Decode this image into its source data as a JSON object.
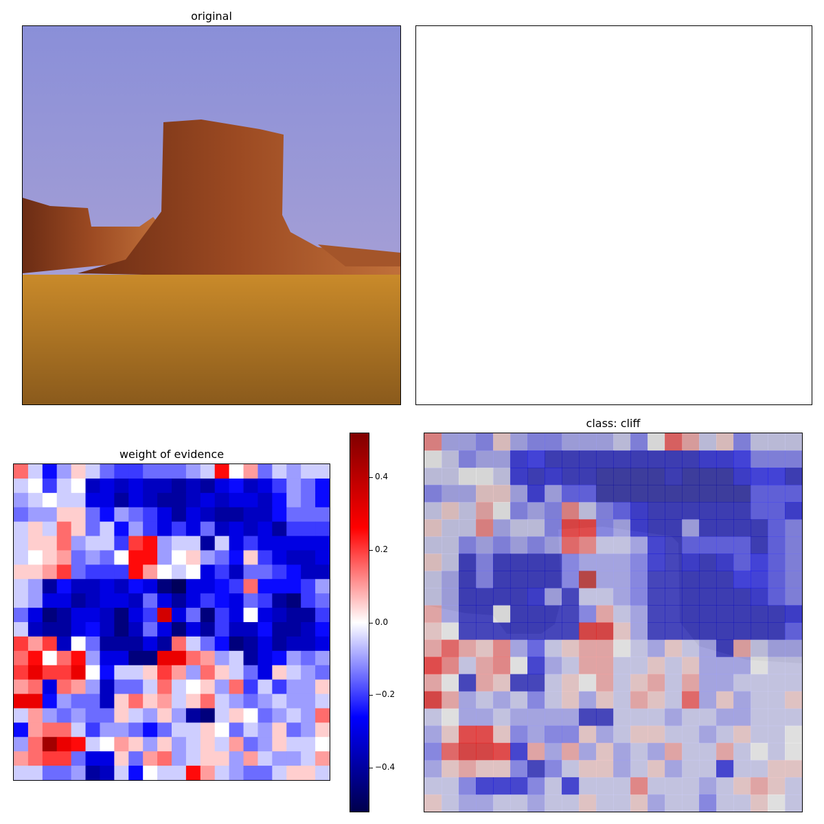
{
  "panels": {
    "original": {
      "title": "original"
    },
    "blank": {
      "title": ""
    },
    "weight": {
      "title": "weight of evidence"
    },
    "overlay": {
      "title": "class: cliff"
    }
  },
  "colors": {
    "sky_top": "#8a8fd8",
    "sky_bottom": "#b3a7d4",
    "rock_dark": "#6b2c14",
    "rock_mid": "#9c4a22",
    "rock_light": "#c0703a",
    "grass": "#c98a2a",
    "grass_dark": "#8a5a1c",
    "overlay_gray": "#9a9a9a",
    "cmap": [
      "#00004c",
      "#0000ff",
      "#ffffff",
      "#ff0000",
      "#800000"
    ]
  },
  "chart_data": [
    {
      "type": "heatmap",
      "title": "weight of evidence",
      "xlabel": "",
      "ylabel": "",
      "rows": 22,
      "cols": 22,
      "colormap": "seismic",
      "vmin": -0.52,
      "vmax": 0.52,
      "colorbar_ticks": [
        0.4,
        0.2,
        0.0,
        -0.2,
        -0.4
      ],
      "colorbar_tick_labels": [
        "0.4",
        "0.2",
        "0.0",
        "−0.2",
        "−0.4"
      ],
      "values": [
        [
          0.15,
          -0.05,
          -0.25,
          -0.1,
          0.05,
          -0.05,
          -0.15,
          -0.2,
          -0.2,
          -0.15,
          -0.15,
          -0.15,
          -0.1,
          -0.05,
          0.25,
          0.0,
          0.1,
          -0.15,
          -0.05,
          -0.1,
          -0.05,
          -0.05
        ],
        [
          -0.05,
          0.0,
          -0.2,
          -0.05,
          0.0,
          -0.35,
          -0.3,
          -0.35,
          -0.3,
          -0.35,
          -0.35,
          -0.4,
          -0.35,
          -0.4,
          -0.3,
          -0.25,
          -0.35,
          -0.3,
          -0.2,
          -0.1,
          -0.15,
          -0.25
        ],
        [
          -0.1,
          -0.05,
          0.0,
          -0.05,
          -0.05,
          -0.3,
          -0.3,
          -0.4,
          -0.3,
          -0.35,
          -0.4,
          -0.4,
          -0.35,
          -0.3,
          -0.35,
          -0.3,
          -0.3,
          -0.35,
          -0.25,
          -0.1,
          -0.15,
          -0.25
        ],
        [
          -0.15,
          -0.1,
          -0.1,
          0.05,
          0.05,
          -0.15,
          -0.25,
          -0.1,
          -0.15,
          -0.2,
          -0.3,
          -0.4,
          -0.3,
          -0.35,
          -0.4,
          -0.4,
          -0.35,
          -0.35,
          -0.25,
          -0.15,
          -0.15,
          -0.15
        ],
        [
          -0.05,
          0.05,
          -0.05,
          0.15,
          0.05,
          -0.15,
          -0.05,
          -0.25,
          -0.1,
          -0.2,
          -0.3,
          -0.2,
          -0.3,
          -0.15,
          -0.35,
          -0.3,
          -0.35,
          -0.3,
          -0.4,
          -0.2,
          -0.2,
          -0.2
        ],
        [
          -0.05,
          0.05,
          0.05,
          0.15,
          -0.1,
          -0.05,
          -0.05,
          -0.2,
          0.2,
          0.25,
          -0.1,
          -0.05,
          -0.05,
          -0.4,
          -0.05,
          -0.3,
          -0.2,
          -0.3,
          -0.3,
          -0.3,
          -0.3,
          -0.3
        ],
        [
          -0.05,
          0.0,
          0.05,
          0.1,
          -0.15,
          -0.1,
          -0.15,
          0.0,
          0.25,
          0.25,
          -0.1,
          0.0,
          0.05,
          -0.1,
          -0.15,
          -0.25,
          0.05,
          -0.2,
          -0.3,
          -0.35,
          -0.35,
          -0.3
        ],
        [
          0.05,
          0.05,
          0.1,
          0.2,
          -0.15,
          -0.2,
          -0.2,
          -0.2,
          0.25,
          0.1,
          0.0,
          -0.05,
          0.0,
          -0.3,
          -0.2,
          -0.35,
          -0.15,
          -0.15,
          -0.2,
          -0.25,
          -0.35,
          -0.35
        ],
        [
          -0.05,
          -0.1,
          -0.4,
          -0.25,
          -0.35,
          -0.35,
          -0.3,
          -0.35,
          -0.25,
          -0.3,
          -0.45,
          -0.5,
          -0.3,
          -0.3,
          -0.25,
          -0.2,
          0.15,
          -0.25,
          -0.25,
          -0.25,
          -0.2,
          -0.1
        ],
        [
          -0.05,
          -0.1,
          -0.3,
          -0.3,
          -0.4,
          -0.35,
          -0.3,
          -0.3,
          -0.35,
          -0.15,
          -0.3,
          -0.4,
          -0.3,
          -0.2,
          -0.25,
          -0.3,
          -0.15,
          -0.2,
          -0.4,
          -0.45,
          -0.2,
          -0.15
        ],
        [
          -0.15,
          -0.3,
          -0.45,
          -0.4,
          -0.3,
          -0.3,
          -0.35,
          -0.45,
          -0.3,
          -0.2,
          0.35,
          -0.3,
          -0.15,
          -0.45,
          -0.2,
          -0.3,
          0.0,
          -0.3,
          -0.35,
          -0.4,
          -0.4,
          -0.2
        ],
        [
          -0.05,
          -0.35,
          -0.4,
          -0.4,
          -0.3,
          -0.25,
          -0.35,
          -0.45,
          -0.35,
          -0.15,
          -0.3,
          -0.45,
          -0.3,
          -0.4,
          -0.2,
          -0.35,
          -0.35,
          -0.25,
          -0.4,
          -0.4,
          -0.35,
          -0.25
        ],
        [
          0.2,
          0.1,
          0.2,
          -0.35,
          0.0,
          -0.15,
          -0.4,
          -0.4,
          -0.4,
          -0.3,
          -0.4,
          0.15,
          -0.05,
          -0.15,
          -0.25,
          -0.45,
          -0.4,
          -0.3,
          -0.4,
          -0.35,
          -0.35,
          -0.3
        ],
        [
          0.15,
          0.25,
          0.0,
          0.15,
          0.25,
          -0.1,
          -0.3,
          -0.3,
          -0.45,
          -0.45,
          0.3,
          0.3,
          0.15,
          0.1,
          -0.1,
          -0.05,
          -0.4,
          -0.3,
          -0.25,
          -0.1,
          -0.15,
          -0.1
        ],
        [
          0.2,
          0.3,
          0.2,
          0.2,
          0.3,
          0.0,
          -0.25,
          -0.05,
          -0.05,
          0.05,
          0.2,
          0.1,
          -0.1,
          0.15,
          0.05,
          -0.05,
          -0.15,
          -0.3,
          0.05,
          -0.05,
          -0.1,
          -0.15
        ],
        [
          0.1,
          0.15,
          -0.3,
          0.15,
          0.1,
          -0.1,
          -0.35,
          -0.15,
          -0.15,
          -0.05,
          0.15,
          -0.05,
          0.0,
          0.05,
          -0.1,
          0.15,
          -0.2,
          -0.05,
          -0.2,
          -0.1,
          -0.1,
          0.05
        ],
        [
          0.3,
          0.3,
          -0.25,
          -0.1,
          -0.15,
          -0.15,
          -0.35,
          0.05,
          0.15,
          0.05,
          0.1,
          -0.05,
          0.05,
          0.15,
          -0.05,
          -0.1,
          -0.15,
          -0.1,
          -0.05,
          -0.1,
          -0.1,
          -0.05
        ],
        [
          -0.05,
          0.1,
          -0.1,
          -0.15,
          -0.1,
          -0.15,
          -0.15,
          0.05,
          -0.05,
          -0.1,
          0.05,
          -0.1,
          -0.4,
          -0.45,
          -0.05,
          0.05,
          0.0,
          -0.15,
          -0.1,
          -0.05,
          -0.1,
          0.15
        ],
        [
          -0.25,
          0.1,
          0.15,
          0.15,
          -0.05,
          -0.2,
          -0.1,
          -0.1,
          -0.15,
          -0.25,
          -0.15,
          -0.05,
          -0.05,
          0.05,
          0.0,
          -0.15,
          -0.05,
          -0.1,
          0.05,
          -0.15,
          -0.1,
          0.05
        ],
        [
          -0.1,
          0.15,
          0.45,
          0.3,
          0.25,
          -0.05,
          0.0,
          0.1,
          0.05,
          -0.1,
          0.05,
          -0.1,
          -0.05,
          0.05,
          -0.05,
          0.1,
          -0.15,
          -0.1,
          0.05,
          -0.05,
          -0.05,
          0.0
        ],
        [
          0.1,
          0.15,
          0.2,
          0.2,
          -0.15,
          -0.3,
          -0.3,
          0.05,
          -0.15,
          0.1,
          0.15,
          -0.1,
          -0.05,
          0.05,
          0.05,
          -0.1,
          0.1,
          -0.05,
          -0.1,
          -0.1,
          -0.05,
          0.1
        ],
        [
          -0.05,
          -0.05,
          -0.15,
          -0.15,
          -0.1,
          -0.4,
          -0.35,
          -0.05,
          -0.25,
          0.0,
          -0.05,
          -0.05,
          0.25,
          0.1,
          -0.05,
          -0.1,
          -0.15,
          -0.15,
          -0.05,
          0.05,
          0.05,
          -0.05
        ]
      ]
    },
    {
      "type": "heatmap",
      "title": "class: cliff",
      "rows": 22,
      "cols": 22,
      "overlay_alpha": 0.6,
      "values": [
        [
          0.15,
          -0.1,
          -0.1,
          -0.15,
          0.05,
          -0.1,
          -0.15,
          -0.15,
          -0.1,
          -0.1,
          -0.1,
          -0.05,
          -0.15,
          0.0,
          0.2,
          0.1,
          -0.05,
          0.05,
          -0.15,
          -0.05,
          -0.05,
          -0.05
        ],
        [
          0.0,
          -0.05,
          -0.15,
          -0.1,
          -0.1,
          -0.3,
          -0.25,
          -0.35,
          -0.35,
          -0.35,
          -0.35,
          -0.35,
          -0.35,
          -0.35,
          -0.35,
          -0.35,
          -0.3,
          -0.3,
          -0.25,
          -0.15,
          -0.15,
          -0.15
        ],
        [
          -0.05,
          -0.05,
          0.0,
          0.0,
          -0.05,
          -0.3,
          -0.35,
          -0.3,
          -0.35,
          -0.35,
          -0.4,
          -0.4,
          -0.4,
          -0.4,
          -0.35,
          -0.4,
          -0.4,
          -0.4,
          -0.3,
          -0.25,
          -0.25,
          -0.35
        ],
        [
          -0.15,
          -0.1,
          -0.1,
          0.05,
          0.05,
          -0.1,
          -0.3,
          -0.1,
          -0.2,
          -0.2,
          -0.4,
          -0.4,
          -0.4,
          -0.4,
          -0.4,
          -0.4,
          -0.4,
          -0.4,
          -0.4,
          -0.2,
          -0.2,
          -0.2
        ],
        [
          -0.05,
          0.05,
          -0.05,
          0.1,
          0.0,
          -0.15,
          -0.1,
          -0.15,
          0.15,
          -0.05,
          -0.15,
          -0.2,
          -0.3,
          -0.35,
          -0.35,
          -0.35,
          -0.35,
          -0.35,
          -0.35,
          -0.2,
          -0.2,
          -0.3
        ],
        [
          0.05,
          -0.05,
          -0.05,
          0.15,
          -0.1,
          -0.05,
          -0.05,
          -0.15,
          0.25,
          0.25,
          -0.15,
          -0.1,
          -0.3,
          -0.35,
          -0.35,
          -0.1,
          -0.35,
          -0.35,
          -0.35,
          -0.35,
          -0.2,
          -0.15
        ],
        [
          -0.05,
          -0.05,
          -0.15,
          -0.1,
          -0.15,
          -0.1,
          -0.15,
          -0.1,
          0.2,
          0.15,
          -0.05,
          -0.05,
          -0.1,
          -0.3,
          -0.35,
          -0.2,
          -0.2,
          -0.2,
          -0.2,
          -0.35,
          -0.2,
          -0.15
        ],
        [
          0.05,
          -0.05,
          -0.35,
          -0.15,
          -0.35,
          -0.35,
          -0.35,
          -0.35,
          -0.15,
          -0.1,
          -0.1,
          -0.1,
          -0.15,
          -0.3,
          -0.35,
          -0.3,
          -0.35,
          -0.3,
          -0.2,
          -0.25,
          -0.2,
          -0.15
        ],
        [
          -0.05,
          -0.1,
          -0.35,
          -0.15,
          -0.35,
          -0.35,
          -0.35,
          -0.35,
          -0.15,
          0.4,
          -0.1,
          -0.1,
          -0.15,
          -0.35,
          -0.35,
          -0.35,
          -0.35,
          -0.35,
          -0.25,
          -0.25,
          -0.2,
          -0.15
        ],
        [
          -0.05,
          -0.1,
          -0.35,
          -0.35,
          -0.35,
          -0.35,
          -0.3,
          -0.1,
          -0.35,
          -0.05,
          -0.05,
          -0.1,
          -0.15,
          -0.35,
          -0.35,
          -0.35,
          -0.35,
          -0.35,
          -0.35,
          -0.3,
          -0.2,
          -0.15
        ],
        [
          0.1,
          -0.1,
          -0.35,
          -0.35,
          0.0,
          -0.35,
          -0.35,
          -0.35,
          -0.35,
          -0.15,
          0.1,
          -0.05,
          -0.1,
          -0.35,
          -0.35,
          -0.35,
          -0.35,
          -0.35,
          -0.35,
          -0.35,
          -0.35,
          -0.3
        ],
        [
          0.05,
          0.0,
          -0.35,
          -0.35,
          -0.35,
          -0.35,
          -0.35,
          -0.35,
          -0.35,
          0.3,
          0.3,
          0.05,
          -0.1,
          -0.35,
          -0.35,
          -0.35,
          -0.35,
          -0.35,
          -0.35,
          -0.35,
          -0.35,
          -0.2
        ],
        [
          0.1,
          0.2,
          0.1,
          0.05,
          0.15,
          -0.1,
          -0.2,
          -0.05,
          0.05,
          0.1,
          0.1,
          0.0,
          -0.05,
          -0.1,
          0.05,
          -0.05,
          -0.1,
          -0.35,
          0.1,
          -0.05,
          -0.1,
          -0.1
        ],
        [
          0.25,
          0.15,
          -0.05,
          0.1,
          0.15,
          0.0,
          -0.3,
          -0.1,
          -0.05,
          0.1,
          0.1,
          -0.05,
          -0.05,
          0.05,
          -0.05,
          0.05,
          -0.1,
          -0.1,
          -0.1,
          0.0,
          -0.05,
          -0.05
        ],
        [
          0.1,
          0.0,
          -0.35,
          0.1,
          0.05,
          -0.35,
          -0.35,
          -0.05,
          0.05,
          0.0,
          0.1,
          -0.05,
          0.05,
          0.1,
          -0.05,
          0.1,
          -0.1,
          -0.1,
          -0.05,
          -0.05,
          -0.05,
          -0.05
        ],
        [
          0.3,
          0.1,
          -0.1,
          -0.05,
          -0.1,
          -0.05,
          -0.15,
          -0.05,
          0.05,
          -0.1,
          0.05,
          -0.05,
          0.1,
          0.05,
          -0.05,
          0.2,
          -0.1,
          0.05,
          -0.1,
          -0.05,
          -0.05,
          0.05
        ],
        [
          -0.05,
          0.0,
          -0.1,
          -0.1,
          -0.05,
          -0.1,
          -0.1,
          -0.1,
          -0.1,
          -0.35,
          -0.35,
          -0.05,
          -0.05,
          -0.05,
          -0.1,
          -0.05,
          -0.05,
          -0.1,
          -0.1,
          -0.05,
          -0.05,
          -0.05
        ],
        [
          -0.1,
          0.05,
          0.25,
          0.25,
          0.05,
          -0.15,
          -0.1,
          -0.15,
          -0.15,
          0.05,
          -0.1,
          -0.05,
          0.05,
          0.05,
          -0.05,
          -0.05,
          -0.1,
          -0.05,
          0.05,
          -0.05,
          -0.05,
          0.0
        ],
        [
          -0.15,
          0.2,
          0.3,
          0.3,
          0.25,
          -0.3,
          0.1,
          -0.1,
          0.1,
          -0.1,
          0.05,
          -0.1,
          -0.05,
          -0.1,
          0.1,
          -0.05,
          -0.05,
          0.1,
          -0.05,
          0.0,
          -0.05,
          0.0
        ],
        [
          -0.1,
          0.05,
          0.1,
          0.05,
          0.05,
          -0.15,
          -0.35,
          -0.15,
          -0.05,
          0.05,
          0.05,
          -0.1,
          -0.05,
          0.05,
          -0.1,
          -0.05,
          -0.05,
          -0.3,
          -0.05,
          -0.05,
          0.05,
          0.05
        ],
        [
          -0.05,
          -0.05,
          -0.15,
          -0.3,
          -0.3,
          -0.3,
          -0.15,
          -0.05,
          -0.3,
          -0.05,
          -0.05,
          -0.05,
          0.15,
          -0.05,
          -0.05,
          -0.05,
          -0.1,
          -0.05,
          0.05,
          0.1,
          0.05,
          -0.05
        ],
        [
          0.05,
          -0.05,
          -0.1,
          -0.1,
          -0.05,
          -0.05,
          -0.1,
          -0.05,
          -0.05,
          0.05,
          -0.05,
          -0.05,
          0.05,
          -0.1,
          -0.05,
          -0.05,
          -0.15,
          -0.05,
          -0.05,
          0.05,
          0.0,
          -0.05
        ]
      ]
    }
  ]
}
